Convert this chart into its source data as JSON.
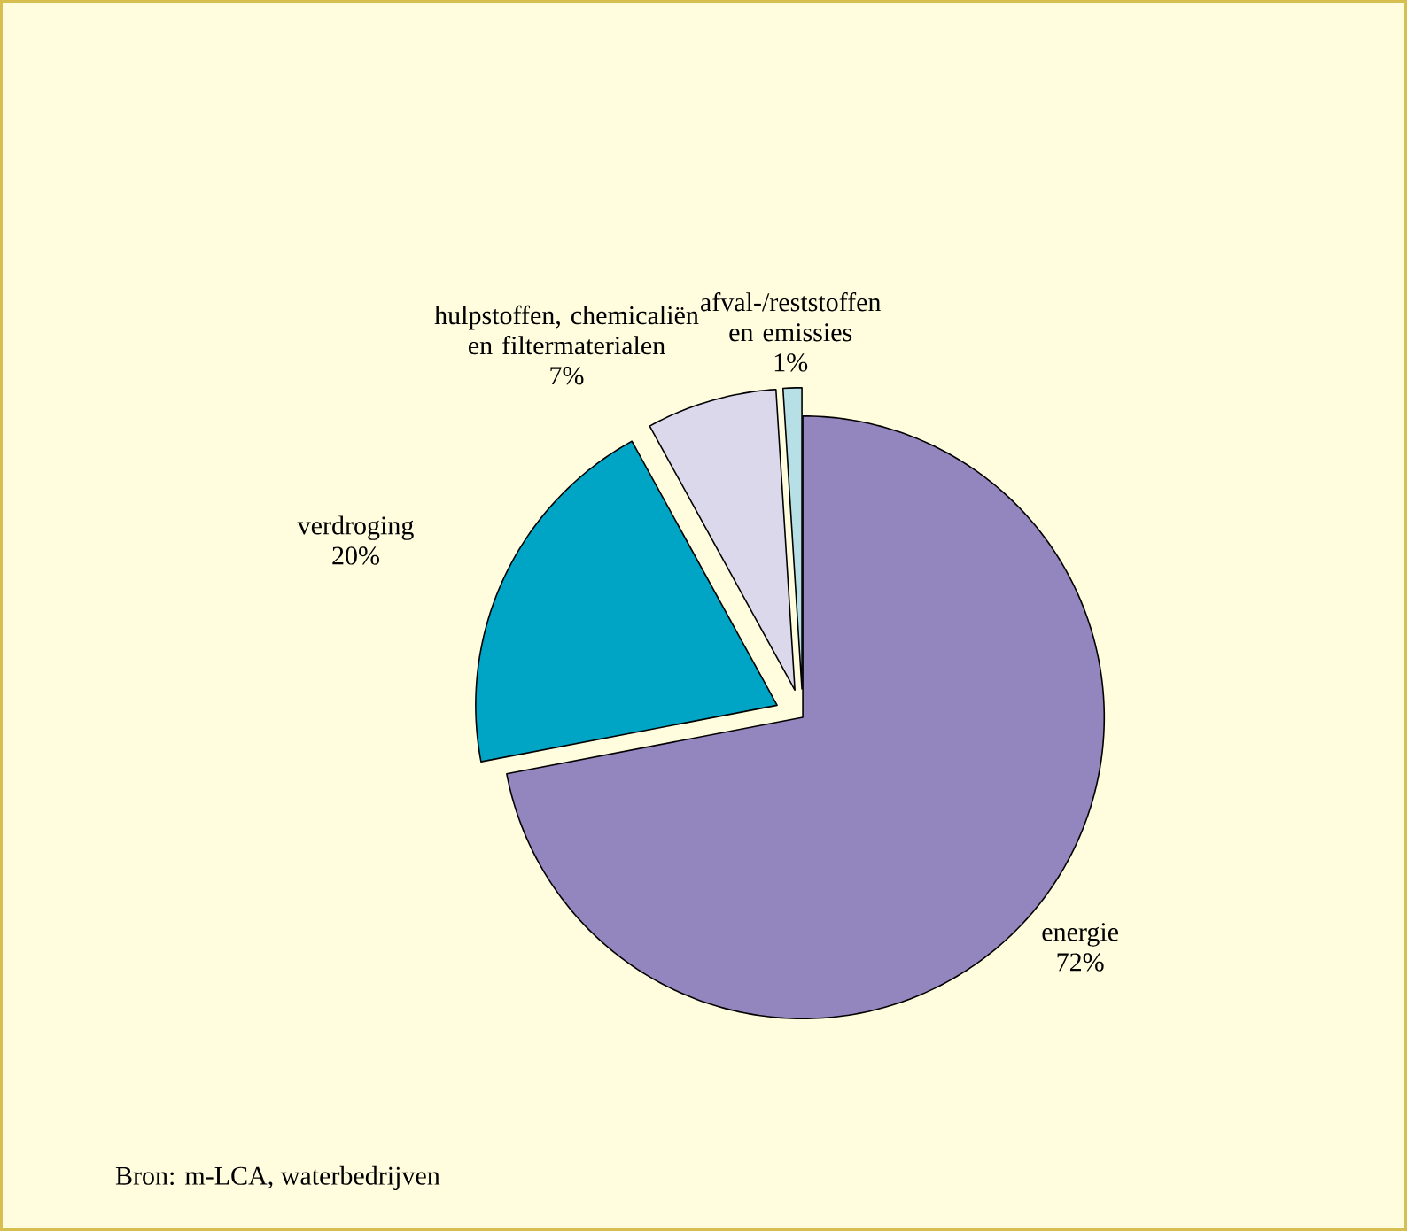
{
  "chart_data": {
    "type": "pie",
    "categories": [
      "energie",
      "verdroging",
      "hulpstoffen, chemicaliën en filtermaterialen",
      "afval-/reststoffen en emissies"
    ],
    "values": [
      72,
      20,
      7,
      1
    ],
    "value_labels": [
      "72%",
      "20%",
      "7%",
      "1%"
    ],
    "colors": [
      "#9385bd",
      "#00a5c6",
      "#dcd8ec",
      "#b6e0e6"
    ],
    "annotations": [
      "Bron: m-LCA, waterbedrijven"
    ]
  }
}
